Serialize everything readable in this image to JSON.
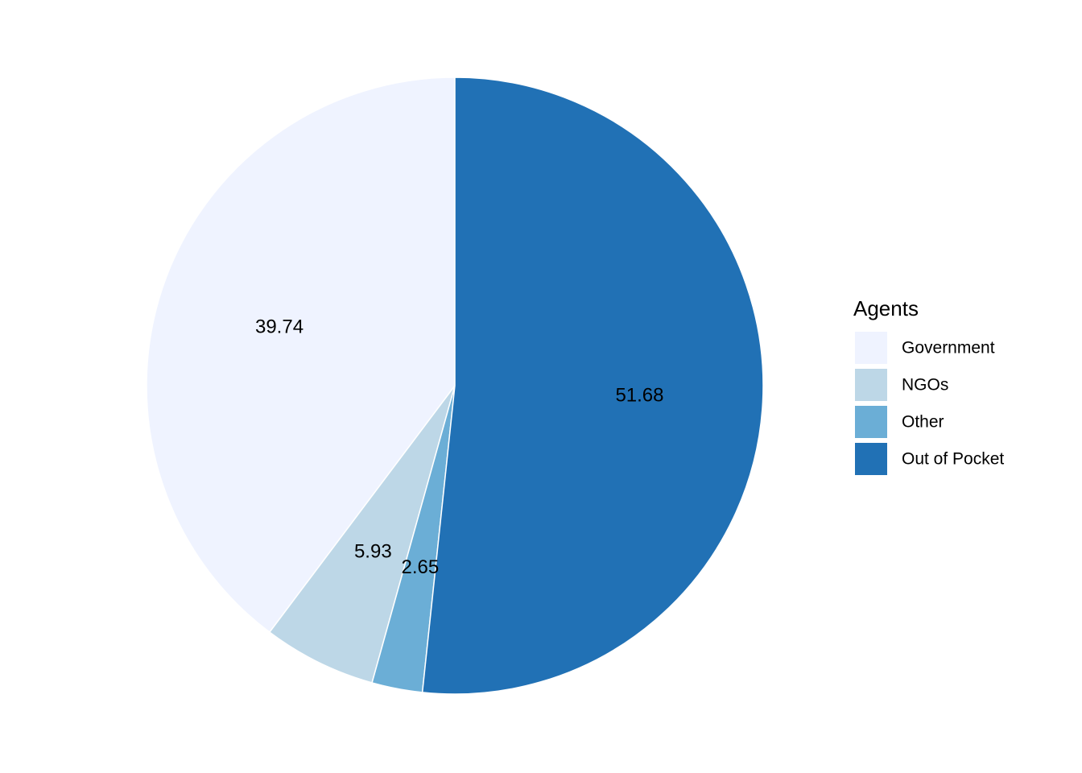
{
  "chart_data": {
    "type": "pie",
    "legend_title": "Agents",
    "legend_position": "right",
    "categories": [
      "Government",
      "NGOs",
      "Other",
      "Out of Pocket"
    ],
    "values": [
      39.74,
      5.93,
      2.65,
      51.68
    ],
    "labels": [
      "39.74",
      "5.93",
      "2.65",
      "51.68"
    ],
    "colors": [
      "#eff3ff",
      "#bdd7e7",
      "#6baed6",
      "#2171b5"
    ],
    "direction": "counterclockwise",
    "start": "top"
  }
}
